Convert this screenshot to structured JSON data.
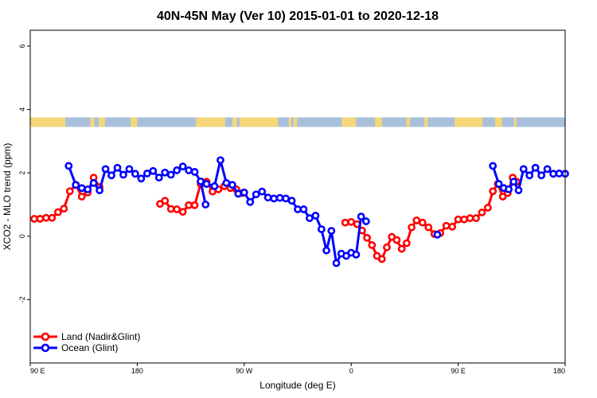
{
  "chart_data": {
    "type": "line",
    "title": "40N-45N May (Ver 10)   2015-01-01 to 2020-12-18",
    "xlabel": "Longitude (deg E)",
    "ylabel": "XCO2 - MLO trend (ppm)",
    "xlim": [
      -90,
      180
    ],
    "ylim": [
      -4,
      6.5
    ],
    "x_ticks": [
      {
        "value": -90,
        "label": "90 E"
      },
      {
        "value": -36,
        "label": "180"
      },
      {
        "value": 18,
        "label": "90 W"
      },
      {
        "value": 72,
        "label": "0"
      },
      {
        "value": 126,
        "label": "90 E"
      },
      {
        "value": 180,
        "label": "180"
      }
    ],
    "y_ticks": [
      {
        "value": -2,
        "label": "-2"
      },
      {
        "value": 0,
        "label": "0"
      },
      {
        "value": 2,
        "label": "2"
      },
      {
        "value": 4,
        "label": "4"
      },
      {
        "value": 6,
        "label": "6"
      }
    ],
    "land_mask": {
      "y_range": [
        3.45,
        3.75
      ],
      "land_color": "#f5d77a",
      "ocean_color": "#a9bfdc",
      "land_segments": [
        [
          -90,
          -72.3
        ],
        [
          -59.7,
          -57.6
        ],
        [
          -55.5,
          -54
        ],
        [
          -54,
          -52.2
        ],
        [
          -39.3,
          -36
        ],
        [
          -6.3,
          8.4
        ],
        [
          12,
          14.4
        ],
        [
          15.6,
          18
        ],
        [
          18,
          35.1
        ],
        [
          40.5,
          41.7
        ],
        [
          42.9,
          44.7
        ],
        [
          67.2,
          74.4
        ],
        [
          84,
          87.6
        ],
        [
          99.9,
          101.7
        ],
        [
          108.9,
          110.7
        ],
        [
          124.2,
          138.3
        ],
        [
          144.6,
          148.2
        ],
        [
          154.2,
          155.4
        ]
      ]
    },
    "series": [
      {
        "name": "Land (Nadir&Glint)",
        "color": "#ff0000",
        "segments": [
          [
            [
              -88,
              0.55
            ],
            [
              -85,
              0.55
            ],
            [
              -82,
              0.58
            ],
            [
              -79,
              0.58
            ],
            [
              -76,
              0.76
            ],
            [
              -73,
              0.87
            ],
            [
              -70,
              1.42
            ],
            [
              -67,
              1.62
            ],
            [
              -64,
              1.25
            ],
            [
              -61,
              1.38
            ],
            [
              -58,
              1.85
            ],
            [
              -55,
              1.55
            ]
          ],
          [
            [
              -24.5,
              1.02
            ],
            [
              -22,
              1.12
            ],
            [
              -19,
              0.86
            ],
            [
              -16,
              0.85
            ],
            [
              -13,
              0.77
            ],
            [
              -10,
              0.98
            ],
            [
              -7,
              0.98
            ],
            [
              -4,
              1.65
            ],
            [
              -1,
              1.72
            ],
            [
              2,
              1.41
            ],
            [
              5,
              1.48
            ],
            [
              8,
              1.58
            ],
            [
              11,
              1.52
            ],
            [
              14,
              1.48
            ],
            [
              17,
              1.36
            ]
          ],
          [
            [
              69,
              0.43
            ],
            [
              72,
              0.45
            ],
            [
              75,
              0.38
            ],
            [
              77.5,
              0.18
            ],
            [
              80,
              -0.05
            ],
            [
              82.5,
              -0.28
            ],
            [
              85,
              -0.62
            ],
            [
              87.5,
              -0.72
            ],
            [
              90,
              -0.35
            ],
            [
              92.5,
              -0.02
            ],
            [
              95,
              -0.12
            ],
            [
              97.5,
              -0.4
            ],
            [
              100,
              -0.22
            ],
            [
              102.5,
              0.28
            ],
            [
              105,
              0.5
            ],
            [
              108,
              0.43
            ],
            [
              111,
              0.28
            ],
            [
              114,
              0.07
            ],
            [
              117,
              0.1
            ],
            [
              120,
              0.33
            ],
            [
              123,
              0.3
            ],
            [
              126,
              0.53
            ],
            [
              129,
              0.53
            ],
            [
              132,
              0.57
            ],
            [
              135,
              0.57
            ],
            [
              138,
              0.75
            ],
            [
              141,
              0.9
            ],
            [
              143.5,
              1.42
            ],
            [
              146,
              1.65
            ],
            [
              148.5,
              1.25
            ],
            [
              151,
              1.36
            ],
            [
              153.5,
              1.85
            ],
            [
              155.5,
              1.72
            ]
          ]
        ]
      },
      {
        "name": "Ocean (Glint)",
        "color": "#0000ff",
        "segments": [
          [
            [
              -70.6,
              2.22
            ],
            [
              -67,
              1.62
            ],
            [
              -64,
              1.52
            ],
            [
              -61,
              1.48
            ],
            [
              -58,
              1.68
            ],
            [
              -55,
              1.45
            ],
            [
              -52,
              2.12
            ],
            [
              -49,
              1.92
            ],
            [
              -46,
              2.16
            ],
            [
              -43,
              1.94
            ],
            [
              -40,
              2.12
            ],
            [
              -37,
              1.97
            ],
            [
              -34,
              1.82
            ],
            [
              -31,
              1.98
            ],
            [
              -28,
              2.06
            ],
            [
              -25,
              1.85
            ],
            [
              -22,
              2.01
            ],
            [
              -19,
              1.94
            ],
            [
              -16,
              2.08
            ],
            [
              -13,
              2.2
            ],
            [
              -10,
              2.08
            ],
            [
              -7,
              2.03
            ],
            [
              -4,
              1.73
            ],
            [
              -1.5,
              1.0
            ]
          ],
          [
            [
              -1,
              1.65
            ],
            [
              3,
              1.58
            ],
            [
              6,
              2.4
            ],
            [
              9,
              1.68
            ],
            [
              12,
              1.62
            ],
            [
              15,
              1.34
            ],
            [
              18,
              1.38
            ],
            [
              21,
              1.08
            ],
            [
              24,
              1.32
            ],
            [
              27,
              1.41
            ],
            [
              30,
              1.22
            ],
            [
              33,
              1.19
            ],
            [
              36,
              1.21
            ],
            [
              39,
              1.19
            ],
            [
              42,
              1.12
            ],
            [
              45,
              0.85
            ],
            [
              48,
              0.85
            ],
            [
              51,
              0.57
            ],
            [
              54,
              0.65
            ],
            [
              57,
              0.22
            ],
            [
              59.5,
              -0.45
            ],
            [
              62,
              0.17
            ],
            [
              64.5,
              -0.85
            ],
            [
              67,
              -0.55
            ],
            [
              69.5,
              -0.62
            ],
            [
              72,
              -0.52
            ],
            [
              74.5,
              -0.58
            ],
            [
              77,
              0.62
            ],
            [
              79.5,
              0.47
            ]
          ],
          [
            [
              115.5,
              0.05
            ]
          ],
          [
            [
              143.5,
              2.22
            ],
            [
              146.5,
              1.65
            ],
            [
              149,
              1.52
            ],
            [
              151.5,
              1.48
            ],
            [
              154,
              1.72
            ],
            [
              156.5,
              1.45
            ],
            [
              159,
              2.12
            ],
            [
              162,
              1.92
            ],
            [
              165,
              2.16
            ],
            [
              168,
              1.92
            ],
            [
              171,
              2.12
            ],
            [
              174,
              1.97
            ],
            [
              177,
              1.98
            ],
            [
              180,
              1.97
            ]
          ]
        ]
      }
    ],
    "legend_position": "bottom-left",
    "grid": false
  }
}
